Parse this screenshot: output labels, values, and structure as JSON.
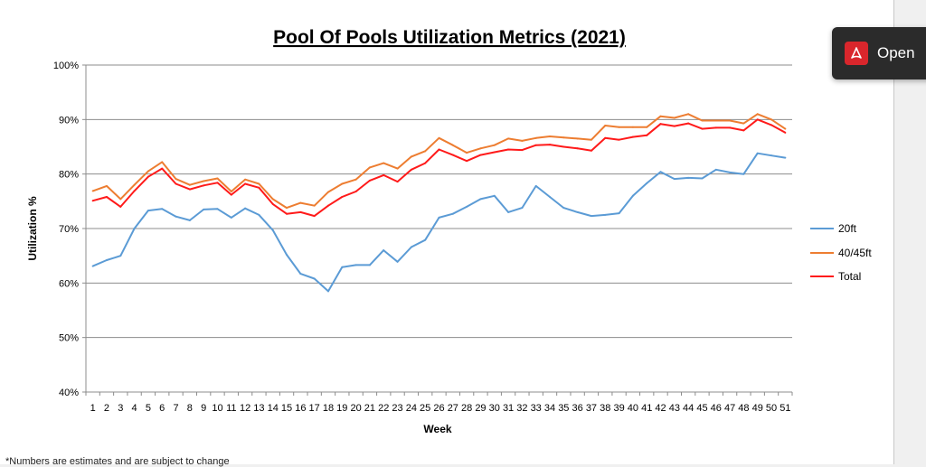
{
  "footnote": "*Numbers are estimates and are subject to change",
  "open_button": {
    "label": "Open",
    "icon": "pdf-icon"
  },
  "chart_data": {
    "type": "line",
    "title": "Pool Of Pools Utilization Metrics (2021)",
    "xlabel": "Week",
    "ylabel": "Utilization %",
    "x": [
      1,
      2,
      3,
      4,
      5,
      6,
      7,
      8,
      9,
      10,
      11,
      12,
      13,
      14,
      15,
      16,
      17,
      18,
      19,
      20,
      21,
      22,
      23,
      24,
      25,
      26,
      27,
      28,
      29,
      30,
      31,
      32,
      33,
      34,
      35,
      36,
      37,
      38,
      39,
      40,
      41,
      42,
      43,
      44,
      45,
      46,
      47,
      48,
      49,
      50,
      51
    ],
    "ylim": [
      40,
      100
    ],
    "yticks": [
      "40%",
      "50%",
      "60%",
      "70%",
      "80%",
      "90%",
      "100%"
    ],
    "grid": true,
    "legend_position": "right",
    "series": [
      {
        "name": "20ft",
        "color": "#5b9bd5",
        "values": [
          63.1,
          64.2,
          65.0,
          70.0,
          73.3,
          73.6,
          72.2,
          71.5,
          73.5,
          73.6,
          72.0,
          73.7,
          72.5,
          69.7,
          65.2,
          61.7,
          60.8,
          58.5,
          62.9,
          63.3,
          63.3,
          66.0,
          63.9,
          66.6,
          67.9,
          72.0,
          72.7,
          74.0,
          75.4,
          76.0,
          73.0,
          73.8,
          77.8,
          75.8,
          73.8,
          73.0,
          72.3,
          72.5,
          72.8,
          76.0,
          78.3,
          80.4,
          79.1,
          79.3,
          79.2,
          80.8,
          80.3,
          80.0,
          83.8,
          83.4,
          83.0
        ]
      },
      {
        "name": "40/45ft",
        "color": "#ed7d31",
        "values": [
          76.9,
          77.8,
          75.4,
          78.0,
          80.5,
          82.2,
          79.1,
          78.0,
          78.7,
          79.2,
          76.8,
          79.0,
          78.2,
          75.4,
          73.8,
          74.7,
          74.2,
          76.7,
          78.2,
          79.0,
          81.2,
          82.0,
          81.0,
          83.2,
          84.2,
          86.6,
          85.3,
          83.9,
          84.7,
          85.3,
          86.5,
          86.1,
          86.6,
          86.9,
          86.7,
          86.5,
          86.3,
          88.9,
          88.6,
          88.6,
          88.6,
          90.6,
          90.3,
          91.0,
          89.8,
          89.8,
          89.8,
          89.3,
          91.0,
          90.0,
          88.3
        ]
      },
      {
        "name": "Total",
        "color": "#ff1a1a",
        "values": [
          75.1,
          75.8,
          74.0,
          76.9,
          79.5,
          81.0,
          78.2,
          77.2,
          77.9,
          78.4,
          76.2,
          78.2,
          77.5,
          74.5,
          72.7,
          73.0,
          72.3,
          74.2,
          75.8,
          76.8,
          78.8,
          79.8,
          78.6,
          80.8,
          82.0,
          84.5,
          83.5,
          82.4,
          83.5,
          84.0,
          84.5,
          84.4,
          85.3,
          85.4,
          85.0,
          84.7,
          84.3,
          86.6,
          86.3,
          86.8,
          87.1,
          89.2,
          88.8,
          89.3,
          88.3,
          88.5,
          88.5,
          88.0,
          90.0,
          89.0,
          87.6
        ]
      }
    ]
  }
}
